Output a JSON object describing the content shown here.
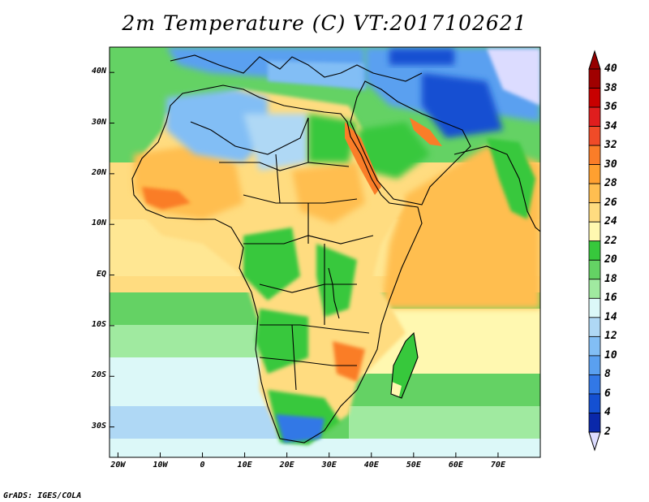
{
  "title": "2m Temperature (C) VT:2017102621",
  "credit": "GrADS: IGES/COLA",
  "map": {
    "region": "Africa, Arabian Peninsula and western Indian Ocean",
    "lon_range": [
      -22,
      80
    ],
    "lat_range": [
      -36,
      45
    ],
    "lat_ticks": [
      {
        "value": 40,
        "label": "40N"
      },
      {
        "value": 30,
        "label": "30N"
      },
      {
        "value": 20,
        "label": "20N"
      },
      {
        "value": 10,
        "label": "10N"
      },
      {
        "value": 0,
        "label": "EQ"
      },
      {
        "value": -10,
        "label": "10S"
      },
      {
        "value": -20,
        "label": "20S"
      },
      {
        "value": -30,
        "label": "30S"
      }
    ],
    "lon_ticks": [
      {
        "value": -20,
        "label": "20W"
      },
      {
        "value": -10,
        "label": "10W"
      },
      {
        "value": 0,
        "label": "0"
      },
      {
        "value": 10,
        "label": "10E"
      },
      {
        "value": 20,
        "label": "20E"
      },
      {
        "value": 30,
        "label": "30E"
      },
      {
        "value": 40,
        "label": "40E"
      },
      {
        "value": 50,
        "label": "50E"
      },
      {
        "value": 60,
        "label": "60E"
      },
      {
        "value": 70,
        "label": "70E"
      }
    ]
  },
  "colorbar": {
    "labels": [
      "40",
      "38",
      "36",
      "34",
      "32",
      "30",
      "28",
      "26",
      "24",
      "22",
      "20",
      "18",
      "16",
      "14",
      "12",
      "10",
      "8",
      "6",
      "4",
      "2"
    ],
    "colors": [
      "#a00000",
      "#c80000",
      "#e01e1e",
      "#f04b28",
      "#fa7d28",
      "#ffa030",
      "#ffbe50",
      "#ffdc80",
      "#fff8b0",
      "#37c83c",
      "#64d264",
      "#a0eaa0",
      "#dcf8f8",
      "#afd8f5",
      "#82bef5",
      "#5aa0f0",
      "#3278e6",
      "#1450d2",
      "#0a28aa",
      "#0a0a78"
    ],
    "over_color": "#960000",
    "under_color": "#dcdcff"
  }
}
